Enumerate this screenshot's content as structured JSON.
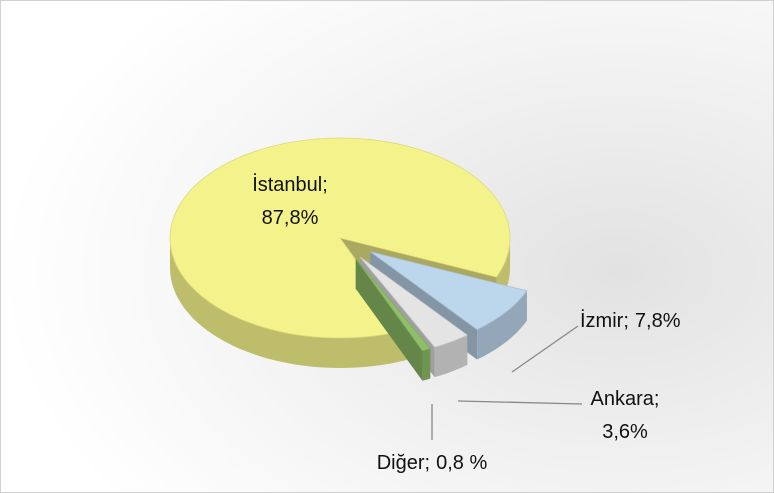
{
  "chart_data": {
    "type": "pie",
    "categories": [
      "İstanbul;",
      "İzmir;",
      "Ankara;",
      "Diğer;"
    ],
    "values": [
      87.8,
      7.8,
      3.6,
      0.8
    ],
    "value_labels": [
      "87,8%",
      "7,8%",
      "3,6%",
      "0,8 %"
    ],
    "colors": [
      "#f4f28a",
      "#bcd6ec",
      "#e4e4e4",
      "#8fbf68"
    ]
  }
}
